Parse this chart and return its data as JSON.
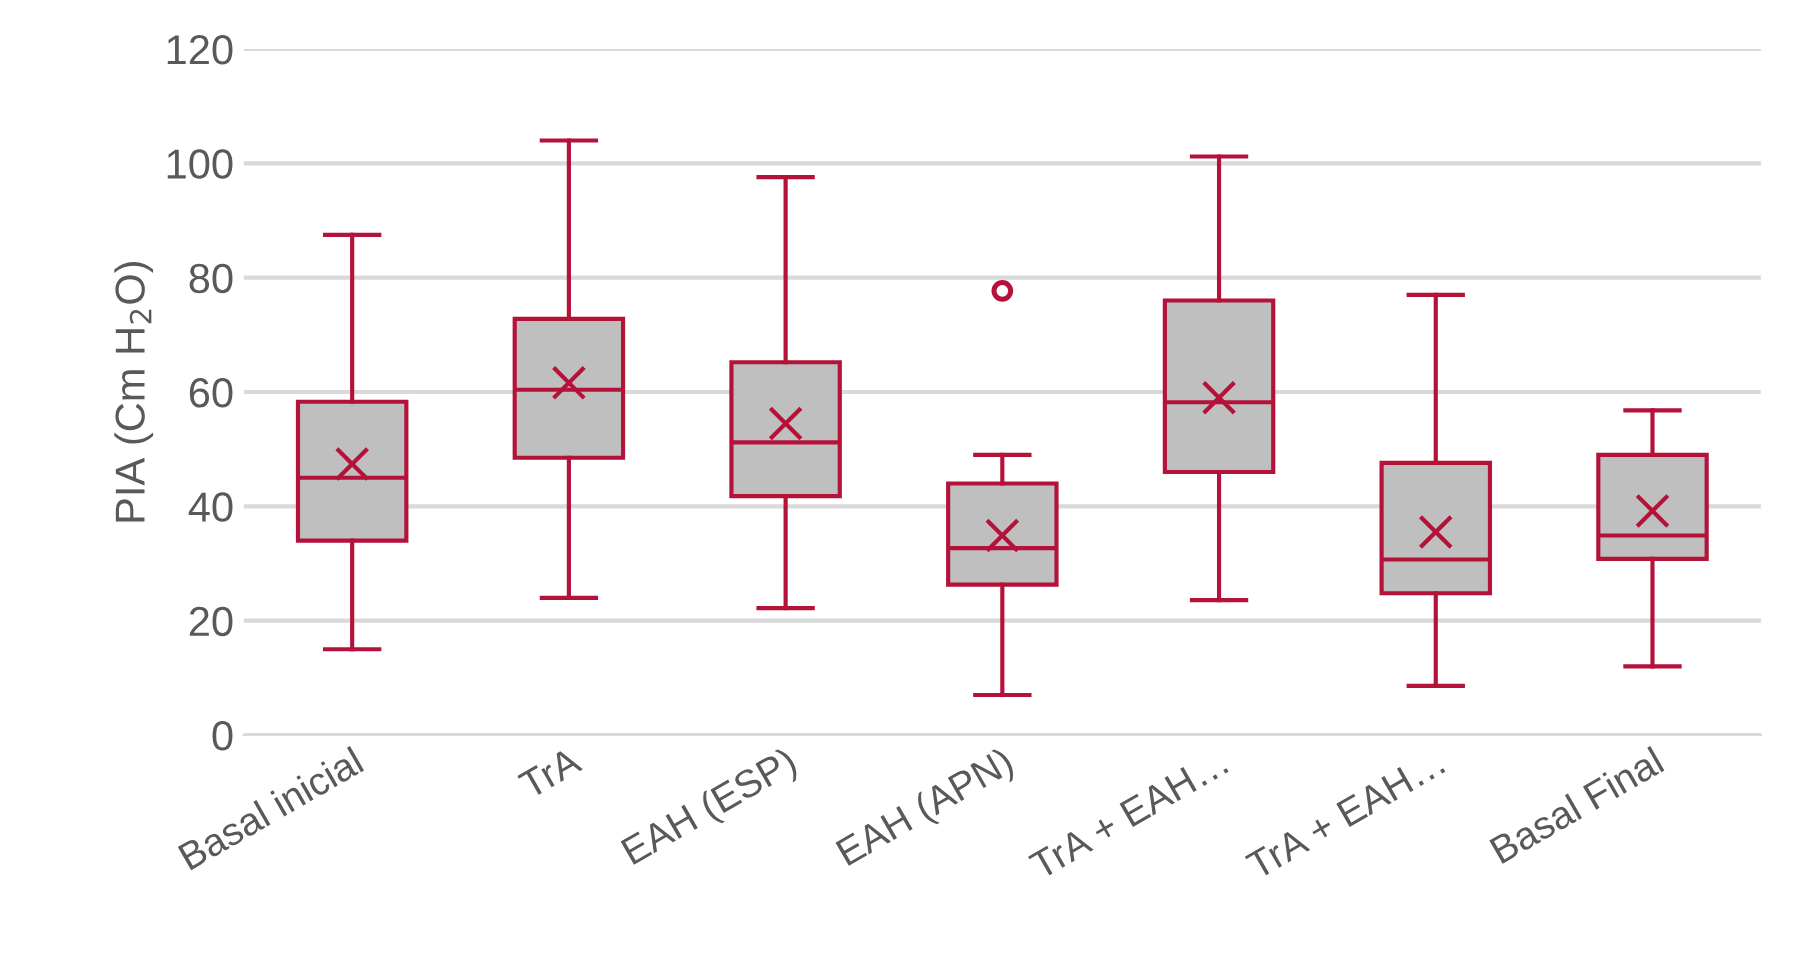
{
  "chart_data": {
    "type": "box",
    "ylabel": "PIA (Cm H$_{2}$O)",
    "categories": [
      "Basal inicial",
      "TrA",
      "EAH (ESP)",
      "EAH (APN)",
      "TrA + EAH…",
      "TrA + EAH…",
      "Basal Final"
    ],
    "color": "#b5123a",
    "boxes": [
      {
        "low": 15,
        "q1": 34,
        "median": 45,
        "q3": 58.3,
        "high": 87.5,
        "mean": 47.4
      },
      {
        "low": 24,
        "q1": 48.5,
        "median": 60.4,
        "q3": 72.8,
        "high": 104,
        "mean": 61.6
      },
      {
        "low": 22.2,
        "q1": 41.8,
        "median": 51.2,
        "q3": 65.2,
        "high": 97.6,
        "mean": 54.5
      },
      {
        "low": 7,
        "q1": 26.3,
        "median": 32.7,
        "q3": 44,
        "high": 49,
        "mean": 34.9,
        "outliers": [
          77.7
        ]
      },
      {
        "low": 23.6,
        "q1": 46,
        "median": 58.2,
        "q3": 76,
        "high": 101.2,
        "mean": 59
      },
      {
        "low": 8.6,
        "q1": 24.8,
        "median": 30.7,
        "q3": 47.6,
        "high": 77,
        "mean": 35.5
      },
      {
        "low": 12,
        "q1": 30.8,
        "median": 34.9,
        "q3": 49,
        "high": 56.8,
        "mean": 39.2
      }
    ],
    "ylim": [
      0,
      120
    ],
    "yticks": [
      0,
      20,
      40,
      60,
      80,
      100,
      120
    ],
    "grid": "y",
    "legend": false
  }
}
